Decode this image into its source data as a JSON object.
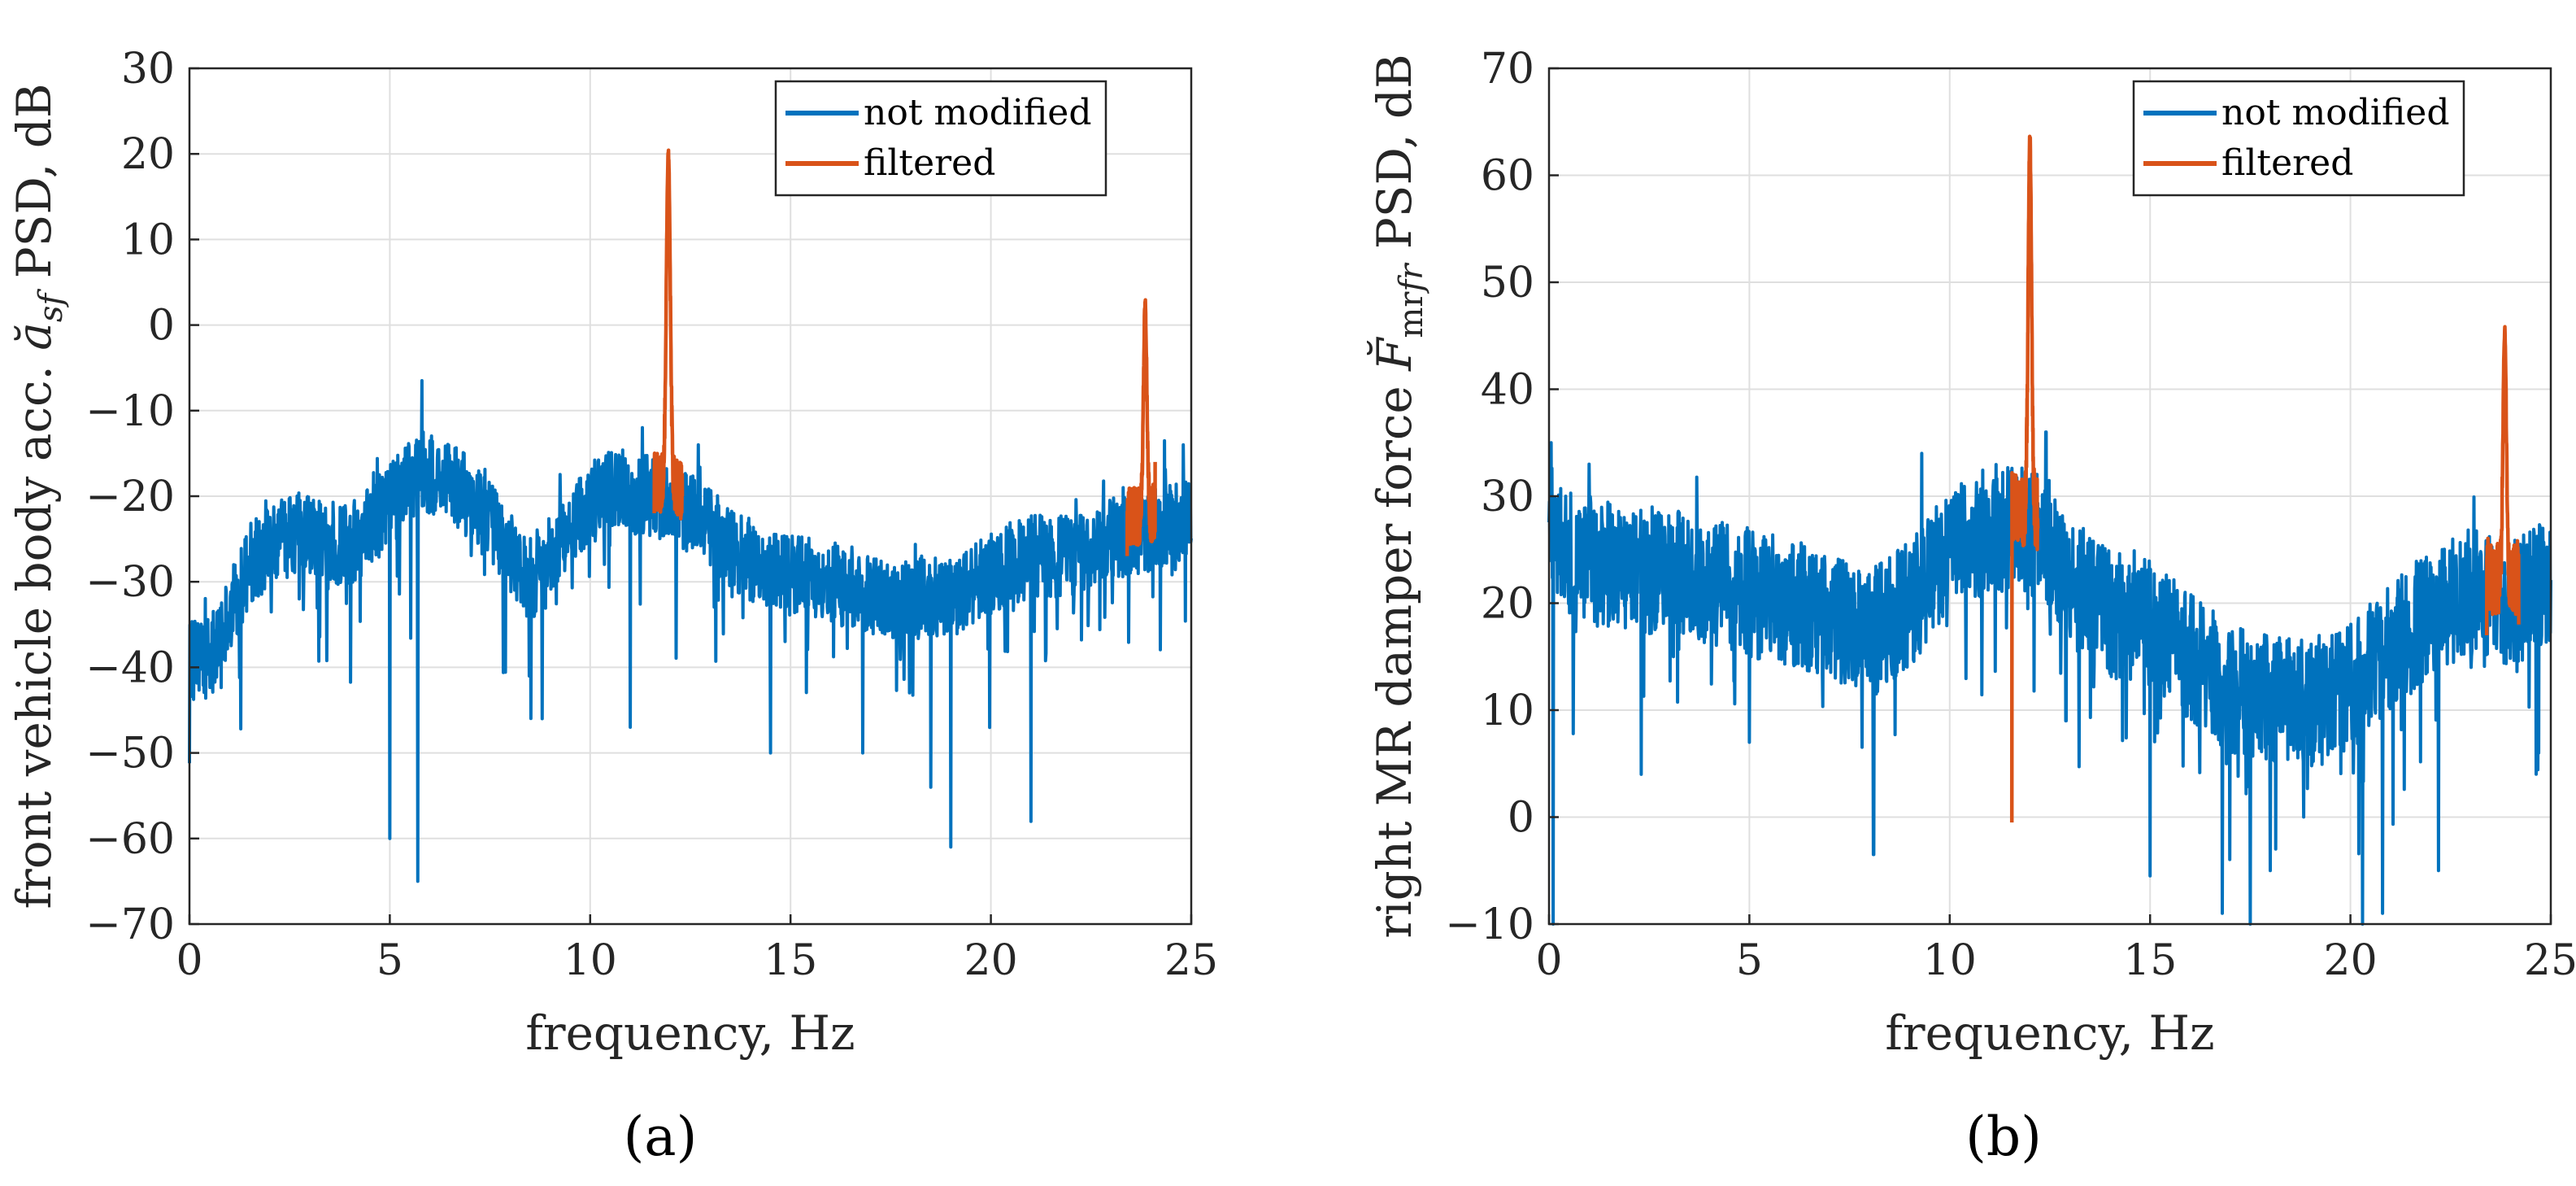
{
  "chart_data": [
    {
      "type": "line",
      "panel_label": "(a)",
      "xlabel": "frequency, Hz",
      "ylabel_parts": [
        "front vehicle body acc. ",
        "ă",
        "sf",
        " PSD, dB"
      ],
      "xlim": [
        0,
        25
      ],
      "ylim": [
        -70,
        30
      ],
      "xticks": [
        0,
        5,
        10,
        15,
        20,
        25
      ],
      "yticks": [
        -70,
        -60,
        -50,
        -40,
        -30,
        -20,
        -10,
        0,
        10,
        20,
        30
      ],
      "ytick_labels": [
        "−70",
        "−60",
        "−50",
        "−40",
        "−30",
        "−20",
        "−10",
        "0",
        "10",
        "20",
        "30"
      ],
      "grid": true,
      "legend_position": "top-right",
      "colors": {
        "not_modified": "#0072BD",
        "filtered": "#D95319"
      },
      "series": [
        {
          "name": "not modified",
          "base_trend": [
            [
              0,
              -39
            ],
            [
              0.5,
              -39
            ],
            [
              1,
              -34
            ],
            [
              1.5,
              -28
            ],
            [
              2.5,
              -24
            ],
            [
              4,
              -26
            ],
            [
              5,
              -21
            ],
            [
              5.8,
              -17
            ],
            [
              6.5,
              -18
            ],
            [
              7.5,
              -23
            ],
            [
              8.5,
              -30
            ],
            [
              9.5,
              -23
            ],
            [
              10.5,
              -19
            ],
            [
              11.5,
              -20
            ],
            [
              12.6,
              -22
            ],
            [
              13.5,
              -26
            ],
            [
              14.5,
              -29
            ],
            [
              16,
              -30
            ],
            [
              17.5,
              -32
            ],
            [
              19,
              -32
            ],
            [
              20,
              -29
            ],
            [
              21,
              -27
            ],
            [
              22,
              -27
            ],
            [
              23,
              -25
            ],
            [
              24,
              -24
            ],
            [
              25,
              -23
            ]
          ],
          "noise_amplitude_db": 4,
          "dips": [
            [
              5.0,
              -60
            ],
            [
              5.7,
              -65
            ],
            [
              8.8,
              -46
            ],
            [
              11.0,
              -47
            ],
            [
              14.5,
              -50
            ],
            [
              16.8,
              -50
            ],
            [
              18.5,
              -54
            ],
            [
              19.0,
              -61
            ],
            [
              21.0,
              -58
            ],
            [
              23.6,
              -26
            ],
            [
              24.8,
              -42
            ]
          ],
          "peaks": [
            [
              5.8,
              -6.5
            ],
            [
              11.3,
              -12
            ],
            [
              12.7,
              -14
            ],
            [
              23.3,
              -19
            ],
            [
              24.8,
              -14
            ]
          ]
        },
        {
          "name": "filtered",
          "ranges": [
            [
              11.6,
              12.3
            ],
            [
              23.4,
              24.1
            ]
          ],
          "resonances": [
            {
              "f0": 11.95,
              "peak": 20,
              "width": 0.07,
              "edge_low": -22,
              "edge_high": -20
            },
            {
              "f0": 23.85,
              "peak": 2.5,
              "width": 0.06,
              "edge_low": -27,
              "edge_high": -16
            }
          ]
        }
      ]
    },
    {
      "type": "line",
      "panel_label": "(b)",
      "xlabel": "frequency, Hz",
      "ylabel_parts": [
        "right MR damper force ",
        "F̆",
        "mr",
        "fr",
        " PSD, dB"
      ],
      "xlim": [
        0,
        25
      ],
      "ylim": [
        -10,
        70
      ],
      "xticks": [
        0,
        5,
        10,
        15,
        20,
        25
      ],
      "yticks": [
        -10,
        0,
        10,
        20,
        30,
        40,
        50,
        60,
        70
      ],
      "ytick_labels": [
        "−10",
        "0",
        "10",
        "20",
        "30",
        "40",
        "50",
        "60",
        "70"
      ],
      "grid": true,
      "legend_position": "top-right",
      "colors": {
        "not_modified": "#0072BD",
        "filtered": "#D95319"
      },
      "series": [
        {
          "name": "not modified",
          "base_trend": [
            [
              0,
              27
            ],
            [
              0.5,
              25
            ],
            [
              1,
              24
            ],
            [
              2,
              23
            ],
            [
              3,
              23
            ],
            [
              4,
              22
            ],
            [
              5,
              21
            ],
            [
              6,
              20
            ],
            [
              7,
              19
            ],
            [
              8,
              17
            ],
            [
              9,
              20
            ],
            [
              10,
              25
            ],
            [
              11,
              27
            ],
            [
              11.6,
              27
            ],
            [
              12.4,
              26
            ],
            [
              13,
              22
            ],
            [
              14,
              19
            ],
            [
              15,
              18
            ],
            [
              16,
              15
            ],
            [
              17,
              12
            ],
            [
              18,
              11
            ],
            [
              19,
              11
            ],
            [
              20,
              12
            ],
            [
              21,
              16
            ],
            [
              22,
              19
            ],
            [
              23,
              21
            ],
            [
              24,
              20
            ],
            [
              25,
              22
            ]
          ],
          "noise_amplitude_db": 5,
          "dips": [
            [
              0.1,
              -10
            ],
            [
              2.3,
              4
            ],
            [
              5.0,
              7
            ],
            [
              8.1,
              -3.5
            ],
            [
              12.9,
              9
            ],
            [
              15.0,
              -5.5
            ],
            [
              16.8,
              -9
            ],
            [
              17.5,
              -10
            ],
            [
              18.0,
              -5
            ],
            [
              20.3,
              -10
            ],
            [
              20.8,
              -9
            ],
            [
              22.2,
              -5
            ],
            [
              24.7,
              6
            ]
          ],
          "peaks": [
            [
              0.05,
              35
            ],
            [
              1.0,
              33
            ],
            [
              9.3,
              34
            ],
            [
              12.4,
              36
            ],
            [
              24.8,
              27
            ]
          ]
        },
        {
          "name": "filtered",
          "ranges": [
            [
              11.55,
              12.2
            ],
            [
              23.4,
              24.2
            ]
          ],
          "resonances": [
            {
              "f0": 12.0,
              "peak": 63.5,
              "width": 0.06,
              "edge_low": -0.5,
              "edge_high": 27
            },
            {
              "f0": 23.85,
              "peak": 45.5,
              "width": 0.06,
              "edge_low": 17,
              "edge_high": 18
            }
          ]
        }
      ]
    }
  ]
}
